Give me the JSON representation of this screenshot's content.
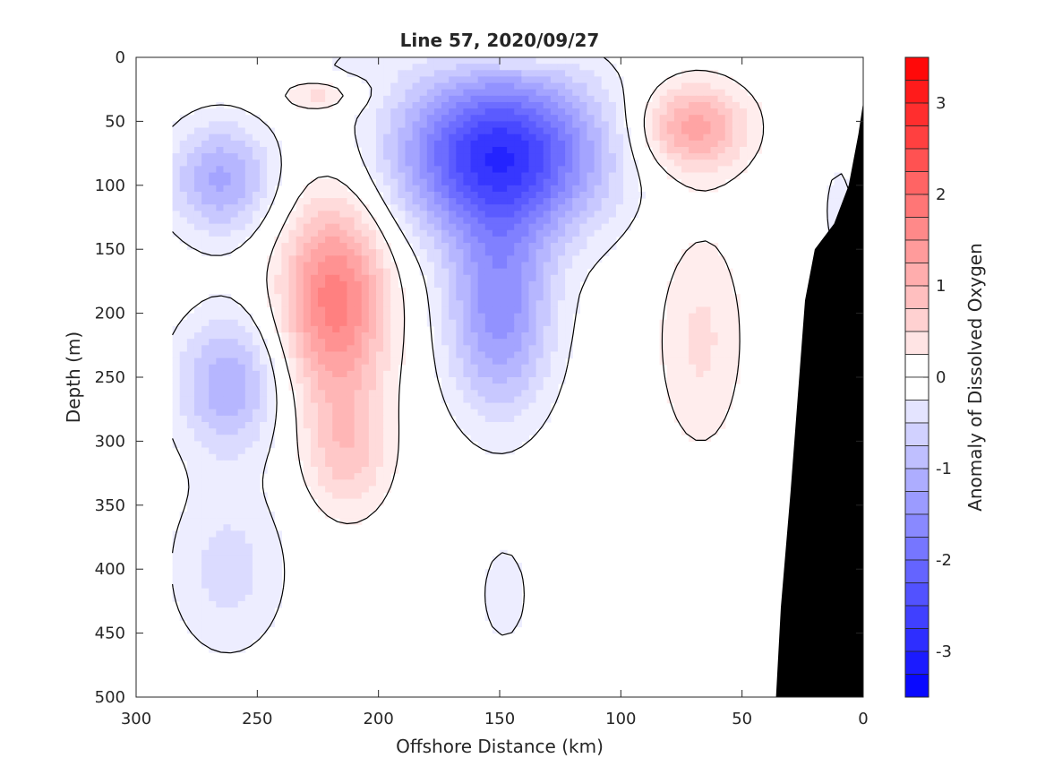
{
  "chart_data": {
    "type": "contour",
    "title": "Line 57, 2020/09/27",
    "xlabel": "Offshore Distance (km)",
    "ylabel": "Depth (m)",
    "colorbar_label": "Anomaly of Dissolved Oxygen",
    "xlim": [
      300,
      0
    ],
    "ylim": [
      500,
      0
    ],
    "x_reversed": true,
    "y_reversed": true,
    "x_ticks": [
      300,
      250,
      200,
      150,
      100,
      50,
      0
    ],
    "y_ticks": [
      0,
      50,
      100,
      150,
      200,
      250,
      300,
      350,
      400,
      450,
      500
    ],
    "colorbar_range": [
      -3.5,
      3.5
    ],
    "colorbar_step": 0.25,
    "colorbar_ticks": [
      3,
      2,
      1,
      0,
      -1,
      -2,
      -3
    ],
    "colormap": {
      "negative": "#0000ff",
      "zero": "#ffffff",
      "positive": "#ff0000"
    },
    "data_x_extent_km": [
      285,
      0
    ],
    "zero_contour_color": "#000000",
    "bathymetry_color": "#000000",
    "features": [
      {
        "sign": "negative",
        "peak": -2.9,
        "x_km": 150,
        "depth_m": 75,
        "half_width_km": 42,
        "half_depth_m": 65
      },
      {
        "sign": "negative",
        "peak": -1.6,
        "x_km": 150,
        "depth_m": 200,
        "half_width_km": 22,
        "half_depth_m": 80
      },
      {
        "sign": "negative",
        "peak": -1.3,
        "x_km": 265,
        "depth_m": 95,
        "half_width_km": 22,
        "half_depth_m": 45
      },
      {
        "sign": "negative",
        "peak": -1.2,
        "x_km": 262,
        "depth_m": 255,
        "half_width_km": 22,
        "half_depth_m": 55
      },
      {
        "sign": "negative",
        "peak": -0.6,
        "x_km": 262,
        "depth_m": 400,
        "half_width_km": 25,
        "half_depth_m": 70
      },
      {
        "sign": "negative",
        "peak": -0.35,
        "x_km": 148,
        "depth_m": 420,
        "half_width_km": 14,
        "half_depth_m": 55
      },
      {
        "sign": "negative",
        "peak": -0.3,
        "x_km": 10,
        "depth_m": 120,
        "half_width_km": 12,
        "half_depth_m": 70
      },
      {
        "sign": "negative",
        "peak": -0.25,
        "x_km": 210,
        "depth_m": 5,
        "half_width_km": 18,
        "half_depth_m": 12
      },
      {
        "sign": "positive",
        "peak": 1.9,
        "x_km": 218,
        "depth_m": 190,
        "half_width_km": 22,
        "half_depth_m": 80
      },
      {
        "sign": "positive",
        "peak": 0.8,
        "x_km": 213,
        "depth_m": 310,
        "half_width_km": 18,
        "half_depth_m": 50
      },
      {
        "sign": "positive",
        "peak": 1.4,
        "x_km": 70,
        "depth_m": 55,
        "half_width_km": 22,
        "half_depth_m": 35
      },
      {
        "sign": "positive",
        "peak": 0.55,
        "x_km": 67,
        "depth_m": 220,
        "half_width_km": 18,
        "half_depth_m": 90
      },
      {
        "sign": "positive",
        "peak": 0.6,
        "x_km": 225,
        "depth_m": 30,
        "half_width_km": 16,
        "half_depth_m": 12
      },
      {
        "sign": "positive",
        "peak": 0.3,
        "x_km": 145,
        "depth_m": 4,
        "half_width_km": 22,
        "half_depth_m": 8
      }
    ],
    "bathymetry": [
      [
        36,
        500
      ],
      [
        34,
        430
      ],
      [
        30,
        340
      ],
      [
        24,
        190
      ],
      [
        20,
        150
      ],
      [
        12,
        130
      ],
      [
        6,
        100
      ],
      [
        2,
        60
      ],
      [
        0,
        35
      ],
      [
        0,
        500
      ]
    ]
  }
}
